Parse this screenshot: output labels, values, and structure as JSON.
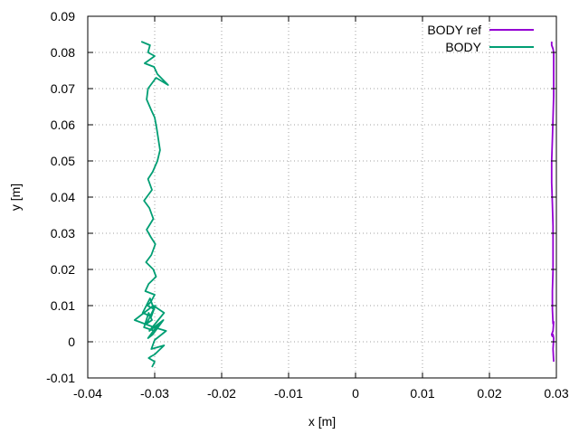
{
  "chart_data": {
    "type": "line",
    "xlabel": "x [m]",
    "ylabel": "y [m]",
    "xlim": [
      -0.04,
      0.03
    ],
    "ylim": [
      -0.01,
      0.09
    ],
    "xticks": [
      "-0.04",
      "-0.03",
      "-0.02",
      "-0.01",
      "0",
      "0.01",
      "0.02",
      "0.03"
    ],
    "yticks": [
      "-0.01",
      "0",
      "0.01",
      "0.02",
      "0.03",
      "0.04",
      "0.05",
      "0.06",
      "0.07",
      "0.08",
      "0.09"
    ],
    "grid": true,
    "legend_position": "top-right",
    "series": [
      {
        "name": "BODY ref",
        "color": "#9400d3",
        "x": [
          0.0293,
          0.0293,
          0.0295,
          0.0296,
          0.0296,
          0.0296,
          0.0295,
          0.0294,
          0.0293,
          0.0293,
          0.0294,
          0.0295,
          0.0295,
          0.0295,
          0.0294,
          0.0294,
          0.0295,
          0.0296,
          0.0295,
          0.0293,
          0.0294,
          0.0295,
          0.0296,
          0.0295,
          0.0296
        ],
        "y": [
          0.083,
          0.082,
          0.081,
          0.08,
          0.074,
          0.068,
          0.062,
          0.056,
          0.05,
          0.044,
          0.038,
          0.032,
          0.026,
          0.02,
          0.014,
          0.009,
          0.005,
          0.0055,
          0.003,
          0.002,
          0.0015,
          0.002,
          0.001,
          -0.002,
          -0.0055
        ]
      },
      {
        "name": "BODY",
        "color": "#009e73",
        "x": [
          -0.032,
          -0.0307,
          -0.031,
          -0.03,
          -0.0315,
          -0.0301,
          -0.0296,
          -0.028,
          -0.0298,
          -0.031,
          -0.0312,
          -0.0305,
          -0.03,
          -0.0297,
          -0.0292,
          -0.0296,
          -0.0303,
          -0.031,
          -0.0304,
          -0.0316,
          -0.0308,
          -0.0302,
          -0.0312,
          -0.0306,
          -0.0299,
          -0.0305,
          -0.0313,
          -0.0302,
          -0.0298,
          -0.0309,
          -0.0314,
          -0.03,
          -0.0306,
          -0.0311,
          -0.0301,
          -0.0307,
          -0.0318,
          -0.0305,
          -0.0299,
          -0.0312,
          -0.0304,
          -0.0309,
          -0.0316,
          -0.03,
          -0.0294,
          -0.031,
          -0.0303,
          -0.0287,
          -0.0308,
          -0.0286,
          -0.0302,
          -0.033,
          -0.0301,
          -0.0283,
          -0.03,
          -0.0305,
          -0.0286,
          -0.03,
          -0.0305,
          -0.0309,
          -0.03,
          -0.0304
        ],
        "y": [
          0.083,
          0.082,
          0.08,
          0.079,
          0.077,
          0.076,
          0.074,
          0.071,
          0.073,
          0.07,
          0.067,
          0.064,
          0.062,
          0.059,
          0.053,
          0.05,
          0.047,
          0.045,
          0.042,
          0.039,
          0.037,
          0.034,
          0.031,
          0.029,
          0.027,
          0.024,
          0.022,
          0.02,
          0.018,
          0.016,
          0.014,
          0.013,
          0.011,
          0.01,
          0.009,
          0.012,
          0.008,
          0.007,
          0.01,
          0.005,
          0.006,
          0.008,
          0.004,
          0.003,
          0.005,
          0.001,
          0.002,
          0.006,
          0.003,
          0.008,
          0.01,
          0.006,
          0.004,
          0.003,
          0.0005,
          -0.002,
          -0.001,
          -0.0035,
          -0.004,
          -0.0045,
          -0.0055,
          -0.007
        ]
      }
    ]
  }
}
